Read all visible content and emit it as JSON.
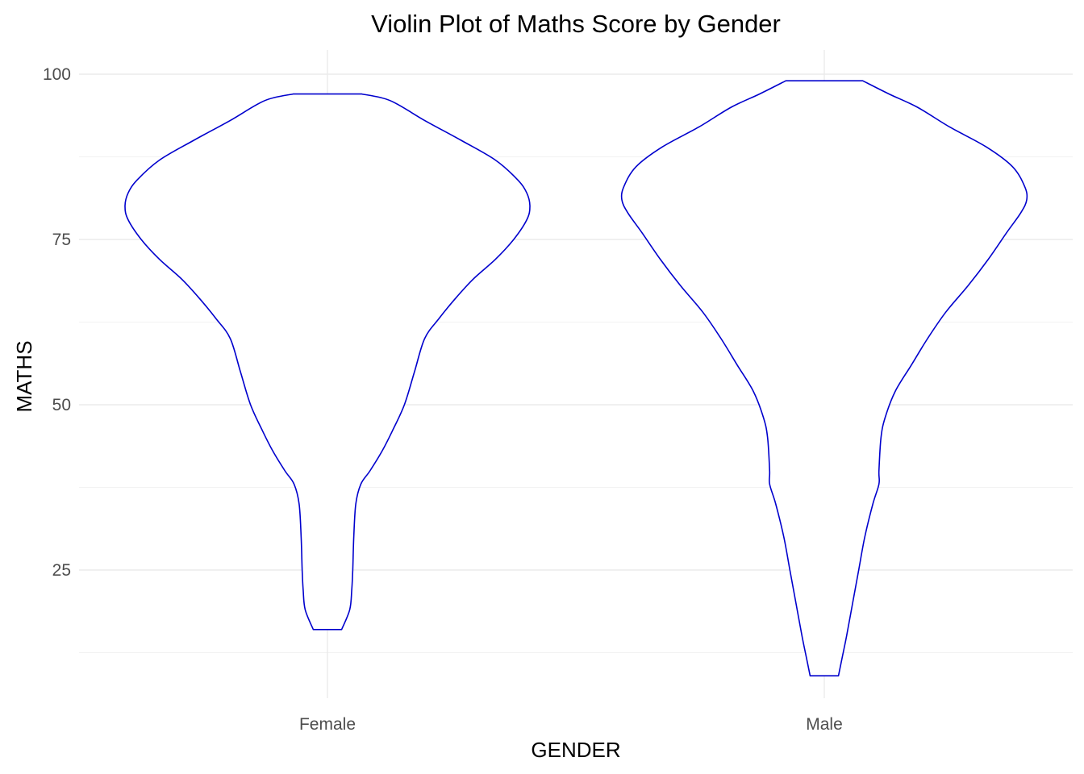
{
  "chart_data": {
    "type": "violin",
    "title": "Violin Plot of Maths Score by Gender",
    "xlabel": "GENDER",
    "ylabel": "MATHS",
    "categories": [
      "Female",
      "Male"
    ],
    "y_ticks": [
      25,
      50,
      75,
      100
    ],
    "ylim": [
      5.9,
      102.3
    ],
    "grid": true,
    "outline_color": "#0000cd",
    "fill_color": "#ffffff",
    "series": [
      {
        "category": "Female",
        "min": 16,
        "max": 97,
        "profile": [
          [
            16,
            0.07
          ],
          [
            19,
            0.11
          ],
          [
            22,
            0.12
          ],
          [
            25,
            0.125
          ],
          [
            30,
            0.13
          ],
          [
            35,
            0.14
          ],
          [
            38,
            0.165
          ],
          [
            40,
            0.21
          ],
          [
            43,
            0.27
          ],
          [
            46,
            0.32
          ],
          [
            50,
            0.38
          ],
          [
            55,
            0.43
          ],
          [
            60,
            0.48
          ],
          [
            63,
            0.55
          ],
          [
            66,
            0.63
          ],
          [
            69,
            0.72
          ],
          [
            72,
            0.83
          ],
          [
            75,
            0.92
          ],
          [
            78,
            0.985
          ],
          [
            80,
            1.0
          ],
          [
            82,
            0.985
          ],
          [
            84,
            0.94
          ],
          [
            87,
            0.83
          ],
          [
            90,
            0.66
          ],
          [
            93,
            0.48
          ],
          [
            96,
            0.31
          ],
          [
            97,
            0.17
          ]
        ]
      },
      {
        "category": "Male",
        "min": 9,
        "max": 99,
        "profile": [
          [
            9,
            0.07
          ],
          [
            12,
            0.09
          ],
          [
            15,
            0.11
          ],
          [
            20,
            0.14
          ],
          [
            25,
            0.17
          ],
          [
            30,
            0.2
          ],
          [
            35,
            0.24
          ],
          [
            38,
            0.27
          ],
          [
            40,
            0.27
          ],
          [
            45,
            0.28
          ],
          [
            48,
            0.3
          ],
          [
            52,
            0.35
          ],
          [
            56,
            0.43
          ],
          [
            60,
            0.51
          ],
          [
            64,
            0.6
          ],
          [
            68,
            0.71
          ],
          [
            72,
            0.81
          ],
          [
            76,
            0.9
          ],
          [
            79,
            0.97
          ],
          [
            81,
            1.0
          ],
          [
            83,
            0.99
          ],
          [
            86,
            0.93
          ],
          [
            89,
            0.8
          ],
          [
            92,
            0.62
          ],
          [
            95,
            0.46
          ],
          [
            97,
            0.32
          ],
          [
            99,
            0.19
          ]
        ]
      }
    ]
  }
}
